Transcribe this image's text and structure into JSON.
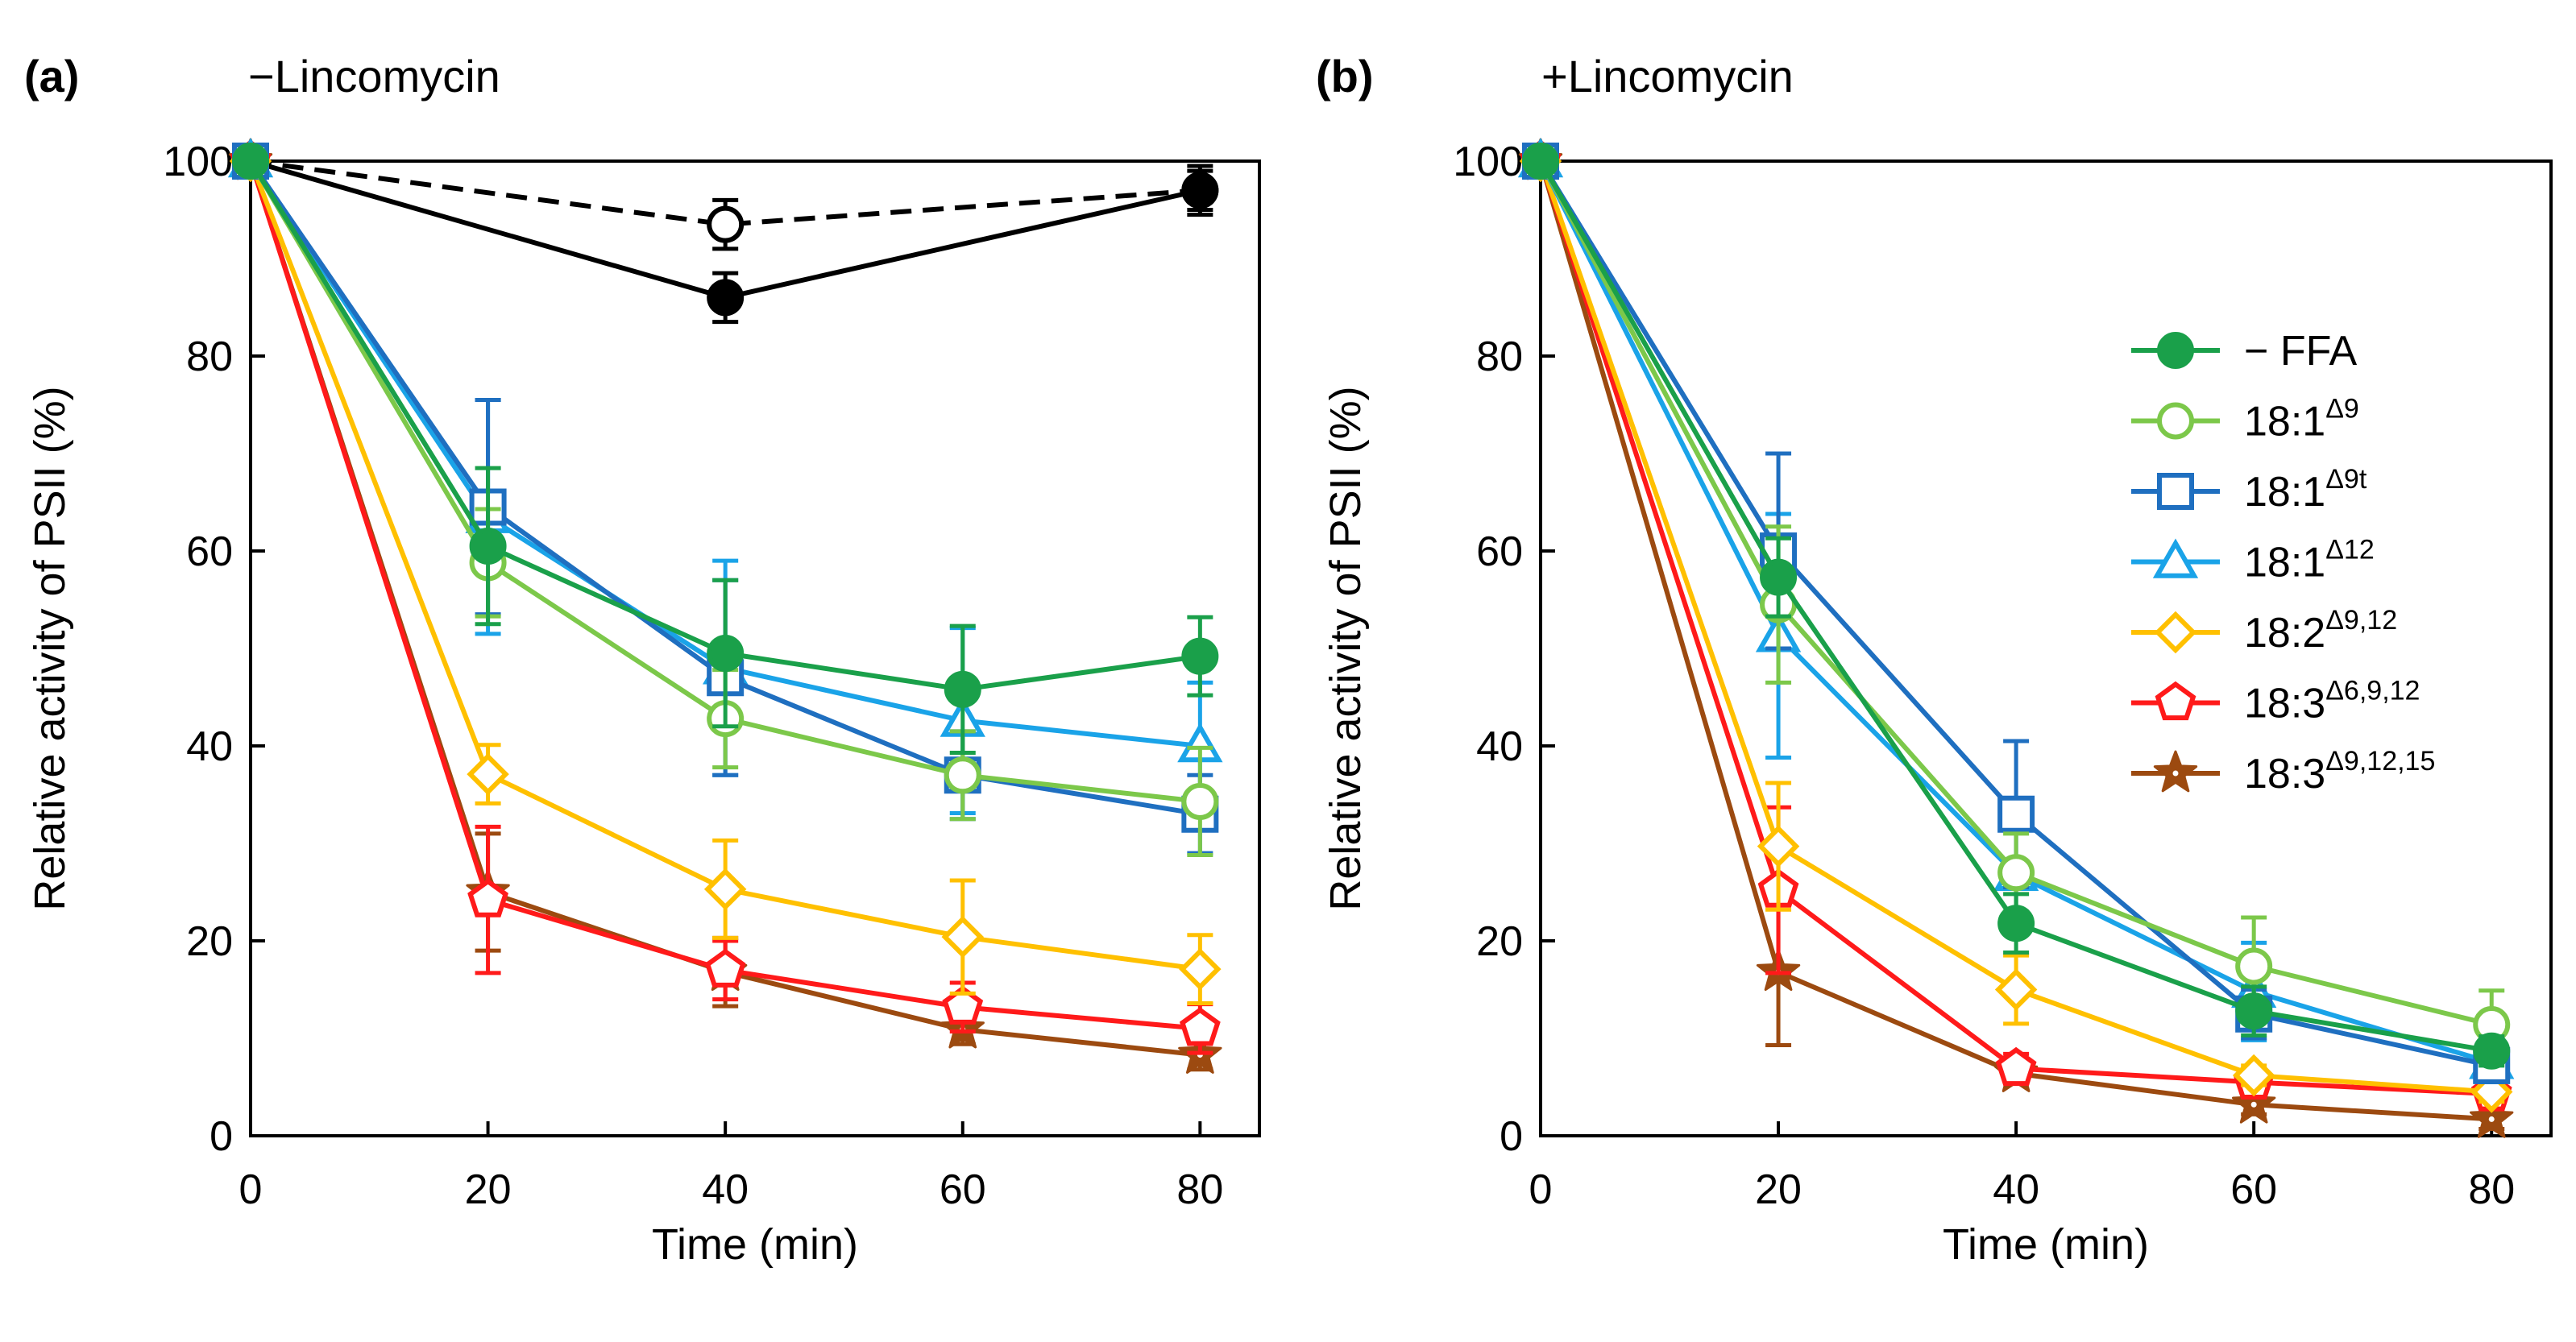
{
  "chart_data": [
    {
      "type": "line",
      "panel": "(a)",
      "title": "−Lincomycin",
      "xlabel": "Time (min)",
      "ylabel": "Relative activity of PSII (%)",
      "x": [
        0,
        20,
        40,
        60,
        80
      ],
      "xticks": [
        "0",
        "20",
        "40",
        "60",
        "80"
      ],
      "yticks": [
        "0",
        "20",
        "40",
        "60",
        "80",
        "100"
      ],
      "xlim": [
        0,
        85
      ],
      "ylim": [
        0,
        100
      ],
      "controls": [
        {
          "name": "dark control, open circles, dashed",
          "points": [
            {
              "x": 0,
              "y": 100,
              "err": 0
            },
            {
              "x": 40,
              "y": 93.5,
              "err": 2.5
            },
            {
              "x": 80,
              "y": 97,
              "err": 2
            }
          ]
        },
        {
          "name": "light control, filled circles, solid",
          "points": [
            {
              "x": 0,
              "y": 100,
              "err": 0
            },
            {
              "x": 40,
              "y": 86,
              "err": 2.5
            },
            {
              "x": 80,
              "y": 97,
              "err": 2.5
            }
          ]
        }
      ],
      "series": [
        {
          "name": "− FFA",
          "values": [
            100,
            60.5,
            49.5,
            45.8,
            49.2
          ],
          "err": [
            0,
            8,
            7.5,
            6.5,
            4
          ]
        },
        {
          "name": "18:1Δ9",
          "values": [
            100,
            58.8,
            42.8,
            37,
            34.3
          ],
          "err": [
            0,
            5.5,
            5,
            4.5,
            5.5
          ]
        },
        {
          "name": "18:1Δ9t",
          "values": [
            100,
            64.5,
            47,
            37,
            33
          ],
          "err": [
            0,
            11,
            10,
            4.5,
            4
          ]
        },
        {
          "name": "18:1Δ12",
          "values": [
            100,
            63.5,
            48,
            42.6,
            40
          ],
          "err": [
            0,
            12,
            11,
            9.5,
            6.5
          ]
        },
        {
          "name": "18:2Δ9,12",
          "values": [
            100,
            37.1,
            25.3,
            20.4,
            17.1
          ],
          "err": [
            0,
            3,
            5,
            5.8,
            3.5
          ]
        },
        {
          "name": "18:3Δ6,9,12",
          "values": [
            100,
            24.2,
            17,
            13.2,
            11
          ],
          "err": [
            0,
            7.5,
            3,
            2.5,
            2.5
          ]
        },
        {
          "name": "18:3Δ9,12,15",
          "values": [
            100,
            25,
            16.8,
            10.9,
            8.3
          ],
          "err": [
            0,
            6,
            3.5,
            1.5,
            1.5
          ]
        }
      ]
    },
    {
      "type": "line",
      "panel": "(b)",
      "title": "+Lincomycin",
      "xlabel": "Time (min)",
      "ylabel": "Relative activity of PSII (%)",
      "x": [
        0,
        20,
        40,
        60,
        80
      ],
      "xticks": [
        "0",
        "20",
        "40",
        "60",
        "80"
      ],
      "yticks": [
        "0",
        "20",
        "40",
        "60",
        "80",
        "100"
      ],
      "xlim": [
        0,
        85
      ],
      "ylim": [
        0,
        100
      ],
      "series": [
        {
          "name": "− FFA",
          "values": [
            100,
            57.3,
            21.8,
            12.8,
            8.7
          ],
          "err": [
            0,
            4,
            3,
            2.5,
            1.5
          ]
        },
        {
          "name": "18:1Δ9",
          "values": [
            100,
            54.5,
            27,
            17.4,
            11.4
          ],
          "err": [
            0,
            8,
            4,
            5,
            3.5
          ]
        },
        {
          "name": "18:1Δ9t",
          "values": [
            100,
            60,
            33,
            12.5,
            7.2
          ],
          "err": [
            0,
            10,
            7.5,
            2.5,
            1.5
          ]
        },
        {
          "name": "18:1Δ12",
          "values": [
            100,
            51.3,
            26.8,
            14.8,
            7.5
          ],
          "err": [
            0,
            12.5,
            5,
            5,
            2
          ]
        },
        {
          "name": "18:2Δ9,12",
          "values": [
            100,
            29.7,
            15,
            6.2,
            4.5
          ],
          "err": [
            0,
            6.5,
            3.5,
            1,
            1
          ]
        },
        {
          "name": "18:3Δ6,9,12",
          "values": [
            100,
            25.2,
            6.9,
            5.5,
            4.3
          ],
          "err": [
            0,
            8.5,
            1.5,
            1,
            1
          ]
        },
        {
          "name": "18:3Δ9,12,15",
          "values": [
            100,
            16.8,
            6.4,
            3.2,
            1.7
          ],
          "err": [
            0,
            7.5,
            1,
            1,
            1
          ]
        }
      ]
    }
  ],
  "legend": {
    "placement": "right",
    "entries": [
      {
        "base": "− FFA",
        "sup": "",
        "color": "#1aa04a",
        "marker": "circle-filled"
      },
      {
        "base": "18:1",
        "sup": "Δ9",
        "color": "#7cc84a",
        "marker": "circle-open"
      },
      {
        "base": "18:1",
        "sup": "Δ9t",
        "color": "#1f6fc0",
        "marker": "square-open"
      },
      {
        "base": "18:1",
        "sup": "Δ12",
        "color": "#1aa3e8",
        "marker": "triangle-open"
      },
      {
        "base": "18:2",
        "sup": "Δ9,12",
        "color": "#ffc000",
        "marker": "diamond-open"
      },
      {
        "base": "18:3",
        "sup": "Δ6,9,12",
        "color": "#ff1a1a",
        "marker": "pentagon-open"
      },
      {
        "base": "18:3",
        "sup": "Δ9,12,15",
        "color": "#9c4a10",
        "marker": "star"
      }
    ]
  },
  "colors": {
    "control": "#000000",
    "minus_ffa": "#1aa04a",
    "d9": "#7cc84a",
    "d9t": "#1f6fc0",
    "d12": "#1aa3e8",
    "d9_12": "#ffc000",
    "d6_9_12": "#ff1a1a",
    "d9_12_15": "#9c4a10"
  }
}
